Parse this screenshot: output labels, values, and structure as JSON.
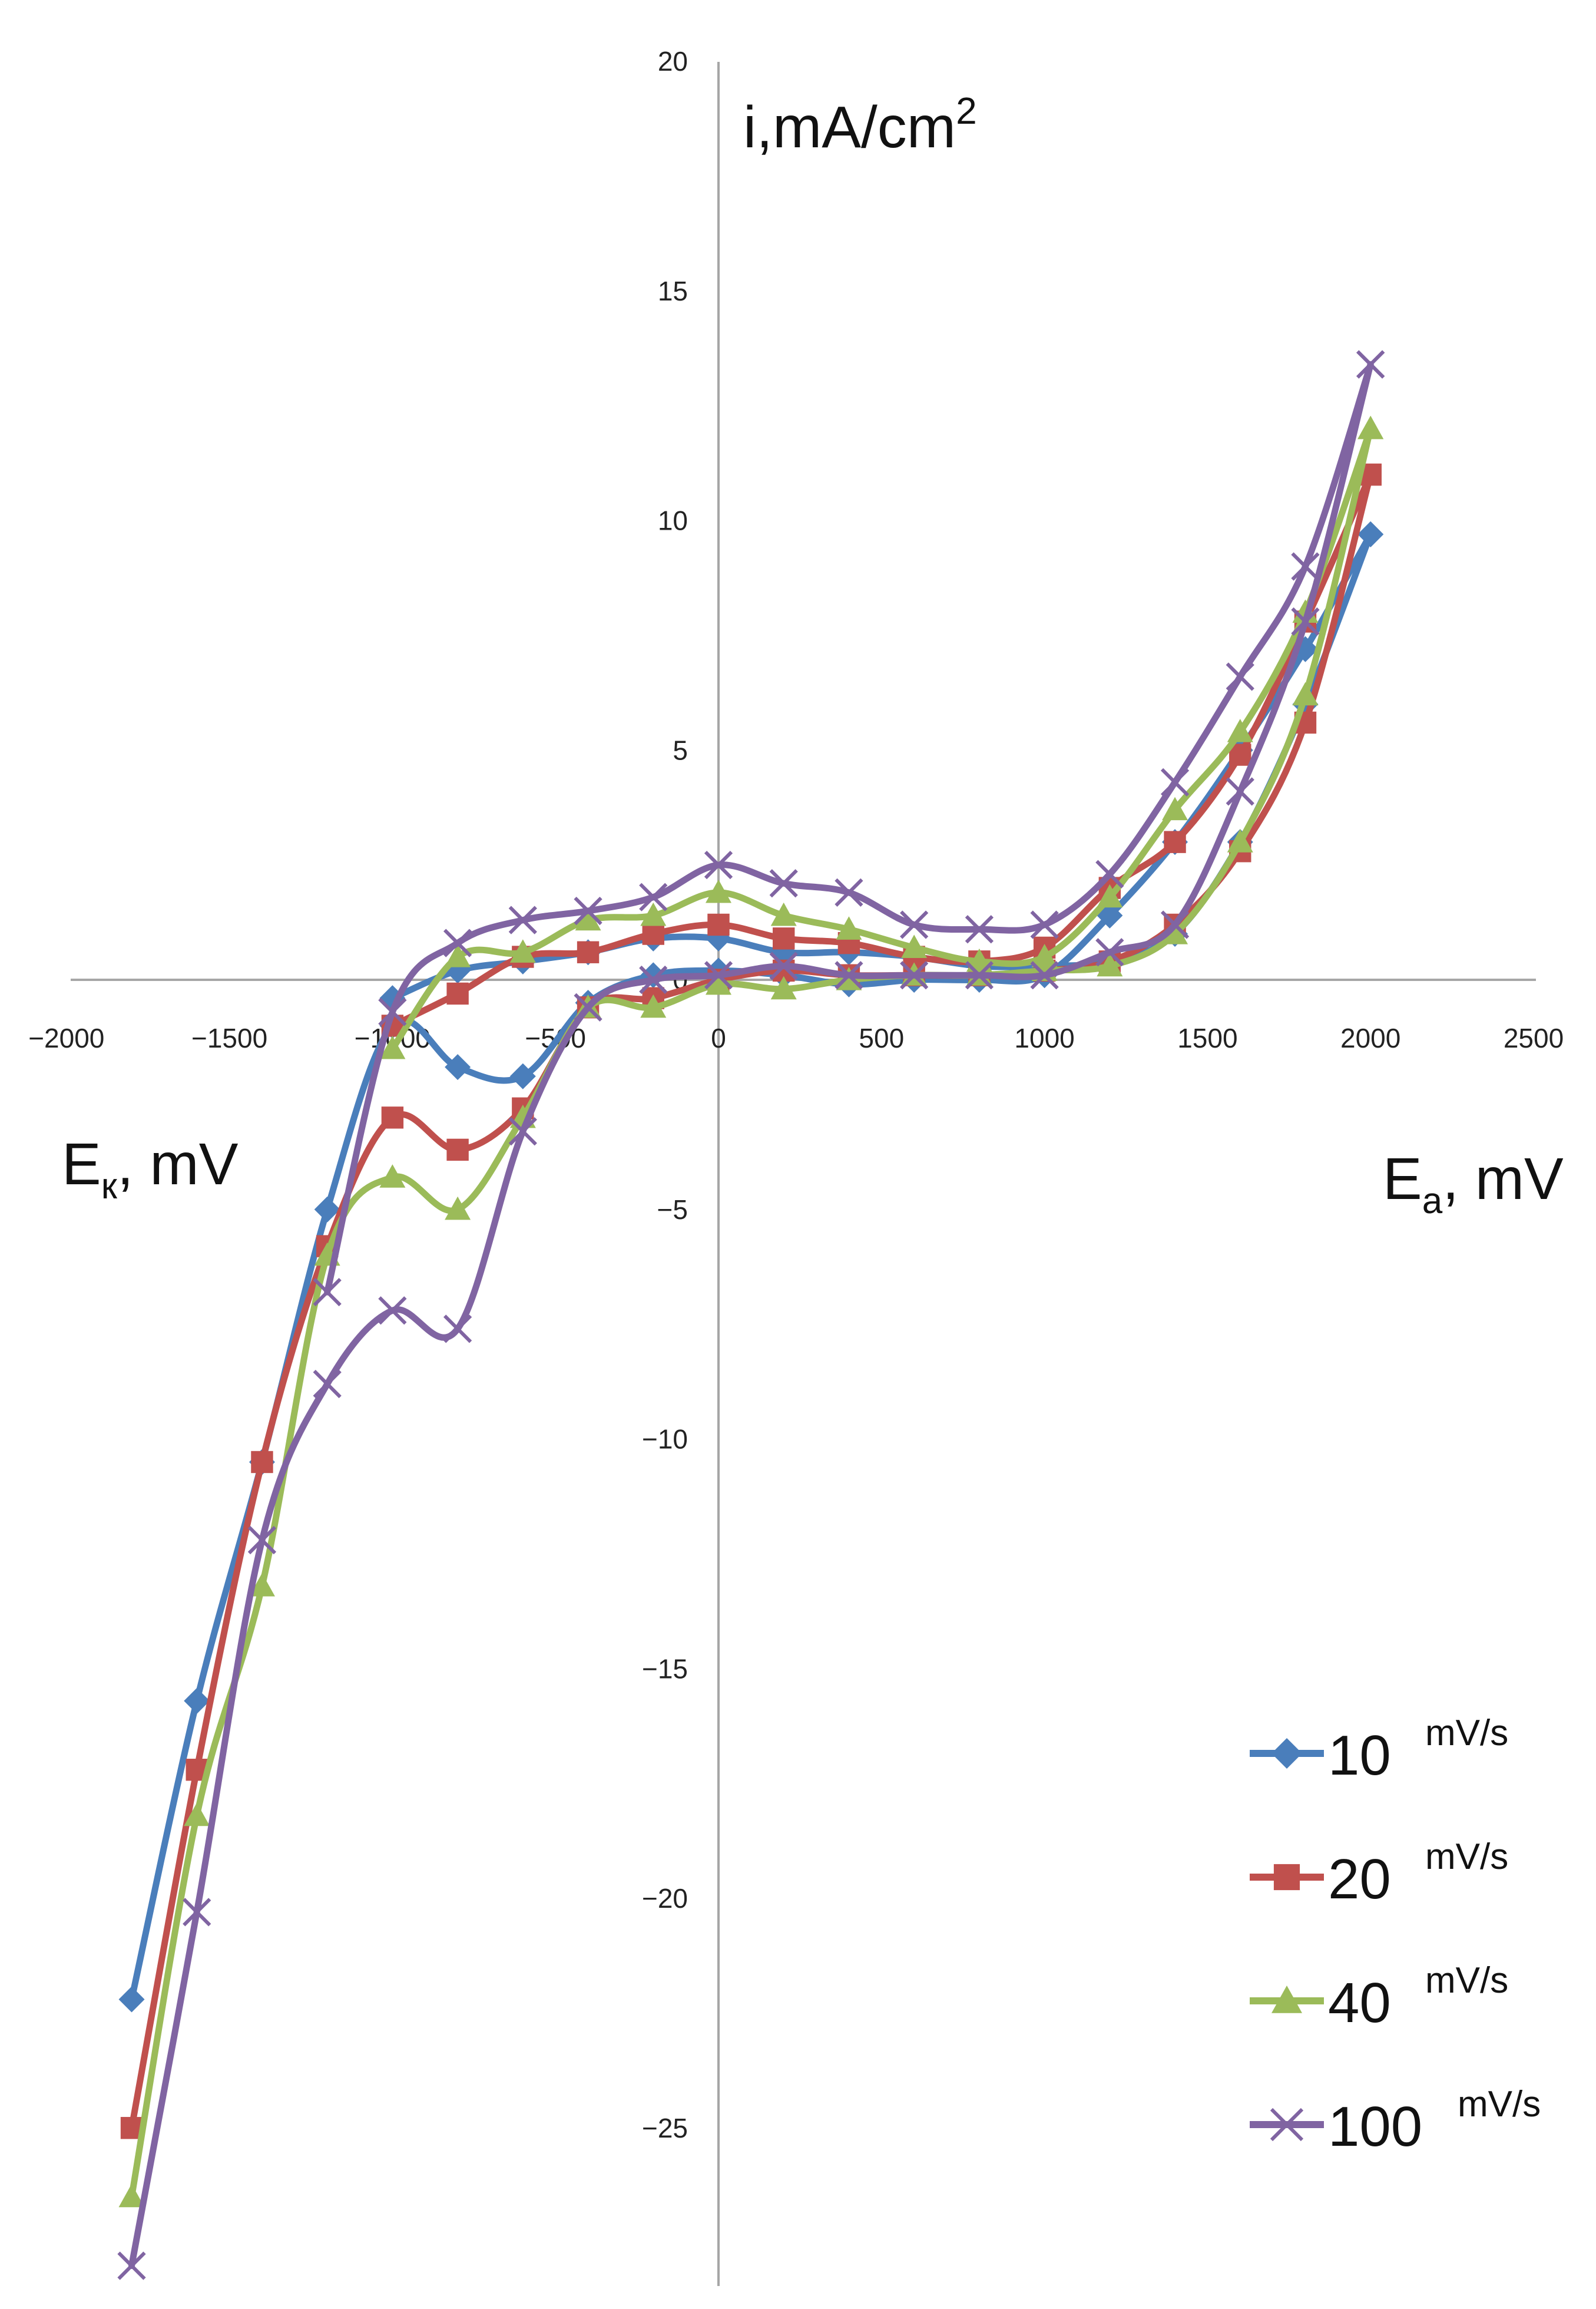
{
  "chart_data": {
    "type": "line",
    "title": "",
    "xlabel_left": "Eк, mV",
    "xlabel_left_main": "E",
    "xlabel_left_sub": "к",
    "xlabel_left_rest": ", mV",
    "xlabel_right": "Ea, mV",
    "xlabel_right_main": "E",
    "xlabel_right_sub": "a",
    "xlabel_right_rest": ", mV",
    "ylabel": "i,mA/cm2",
    "ylabel_main": "i,mA/cm",
    "ylabel_sup": "2",
    "xlim": [
      -2000,
      2500
    ],
    "ylim": [
      -28,
      20
    ],
    "x_ticks": [
      "-2000",
      "-1500",
      "-1000",
      "-500",
      "0",
      "500",
      "1000",
      "1500",
      "2000",
      "2500"
    ],
    "y_ticks": [
      "20",
      "15",
      "10",
      "5",
      "0",
      "-5",
      "-10",
      "-15",
      "-20",
      "-25"
    ],
    "legend_position": "bottom-right",
    "series": [
      {
        "name": "10 mV/s",
        "label_num": "10",
        "label_unit": "mV/s",
        "color": "#4a7ebb",
        "marker": "diamond",
        "forward": [
          [
            -1800,
            -22.2
          ],
          [
            -1600,
            -15.7
          ],
          [
            -1400,
            -10.5
          ],
          [
            -1200,
            -5.0
          ],
          [
            -1000,
            -1.0
          ],
          [
            -800,
            -1.9
          ],
          [
            -600,
            -2.1
          ],
          [
            -400,
            -0.5
          ],
          [
            -200,
            0.1
          ],
          [
            0,
            0.2
          ],
          [
            200,
            0.1
          ],
          [
            400,
            -0.1
          ],
          [
            600,
            0.0
          ],
          [
            800,
            0.0
          ],
          [
            1000,
            0.1
          ],
          [
            1200,
            1.4
          ],
          [
            1400,
            3.0
          ],
          [
            1600,
            5.0
          ],
          [
            1800,
            7.2
          ],
          [
            2000,
            9.7
          ]
        ],
        "backward": [
          [
            2000,
            9.7
          ],
          [
            1800,
            6.0
          ],
          [
            1600,
            3.0
          ],
          [
            1400,
            1.0
          ],
          [
            1200,
            0.4
          ],
          [
            1000,
            0.3
          ],
          [
            800,
            0.3
          ],
          [
            600,
            0.5
          ],
          [
            400,
            0.6
          ],
          [
            200,
            0.6
          ],
          [
            0,
            0.9
          ],
          [
            -200,
            0.9
          ],
          [
            -400,
            0.6
          ],
          [
            -600,
            0.4
          ],
          [
            -800,
            0.2
          ],
          [
            -1000,
            -0.4
          ]
        ]
      },
      {
        "name": "20 mV/s",
        "label_num": "20",
        "label_unit": "mV/s",
        "color": "#c0504d",
        "marker": "square",
        "forward": [
          [
            -1800,
            -25.0
          ],
          [
            -1600,
            -17.2
          ],
          [
            -1400,
            -10.5
          ],
          [
            -1200,
            -5.8
          ],
          [
            -1000,
            -3.0
          ],
          [
            -800,
            -3.7
          ],
          [
            -600,
            -2.8
          ],
          [
            -400,
            -0.6
          ],
          [
            -200,
            -0.4
          ],
          [
            0,
            0.0
          ],
          [
            200,
            0.2
          ],
          [
            400,
            0.1
          ],
          [
            600,
            0.1
          ],
          [
            800,
            0.1
          ],
          [
            1000,
            0.2
          ],
          [
            1200,
            0.4
          ],
          [
            1400,
            1.2
          ],
          [
            1600,
            2.8
          ],
          [
            1800,
            5.6
          ],
          [
            2000,
            11.0
          ]
        ],
        "backward": [
          [
            2000,
            11.0
          ],
          [
            1800,
            7.8
          ],
          [
            1600,
            4.9
          ],
          [
            1400,
            3.0
          ],
          [
            1200,
            2.0
          ],
          [
            1000,
            0.7
          ],
          [
            800,
            0.4
          ],
          [
            600,
            0.5
          ],
          [
            400,
            0.8
          ],
          [
            200,
            0.9
          ],
          [
            0,
            1.2
          ],
          [
            -200,
            1.0
          ],
          [
            -400,
            0.6
          ],
          [
            -600,
            0.5
          ],
          [
            -800,
            -0.3
          ],
          [
            -1000,
            -1.0
          ]
        ]
      },
      {
        "name": "40 mV/s",
        "label_num": "40",
        "label_unit": "mV/s",
        "color": "#9bbb59",
        "marker": "triangle",
        "forward": [
          [
            -1800,
            -26.5
          ],
          [
            -1600,
            -18.2
          ],
          [
            -1400,
            -13.2
          ],
          [
            -1200,
            -6.0
          ],
          [
            -1000,
            -4.3
          ],
          [
            -800,
            -5.0
          ],
          [
            -600,
            -3.0
          ],
          [
            -400,
            -0.6
          ],
          [
            -200,
            -0.6
          ],
          [
            0,
            -0.1
          ],
          [
            200,
            -0.2
          ],
          [
            400,
            0.0
          ],
          [
            600,
            0.1
          ],
          [
            800,
            0.1
          ],
          [
            1000,
            0.2
          ],
          [
            1200,
            0.3
          ],
          [
            1400,
            1.0
          ],
          [
            1600,
            3.0
          ],
          [
            1800,
            6.2
          ],
          [
            2000,
            12.0
          ]
        ],
        "backward": [
          [
            2000,
            12.0
          ],
          [
            1800,
            8.0
          ],
          [
            1600,
            5.4
          ],
          [
            1400,
            3.7
          ],
          [
            1200,
            1.8
          ],
          [
            1000,
            0.5
          ],
          [
            800,
            0.4
          ],
          [
            600,
            0.7
          ],
          [
            400,
            1.1
          ],
          [
            200,
            1.4
          ],
          [
            0,
            1.9
          ],
          [
            -200,
            1.4
          ],
          [
            -400,
            1.3
          ],
          [
            -600,
            0.6
          ],
          [
            -800,
            0.5
          ],
          [
            -1000,
            -1.5
          ]
        ]
      },
      {
        "name": "100 mV/s",
        "label_num": "100",
        "label_unit": "mV/s",
        "color": "#8064a2",
        "marker": "x",
        "forward": [
          [
            -1800,
            -28.0
          ],
          [
            -1600,
            -20.3
          ],
          [
            -1400,
            -12.2
          ],
          [
            -1200,
            -8.8
          ],
          [
            -1000,
            -7.2
          ],
          [
            -800,
            -7.6
          ],
          [
            -600,
            -3.3
          ],
          [
            -400,
            -0.6
          ],
          [
            -200,
            0.0
          ],
          [
            0,
            0.1
          ],
          [
            200,
            0.3
          ],
          [
            400,
            0.1
          ],
          [
            600,
            0.1
          ],
          [
            800,
            0.1
          ],
          [
            1000,
            0.1
          ],
          [
            1200,
            0.6
          ],
          [
            1400,
            1.2
          ],
          [
            1600,
            4.1
          ],
          [
            1800,
            7.8
          ],
          [
            2000,
            13.4
          ]
        ],
        "backward": [
          [
            2000,
            13.4
          ],
          [
            1800,
            9.0
          ],
          [
            1600,
            6.6
          ],
          [
            1400,
            4.3
          ],
          [
            1200,
            2.3
          ],
          [
            1000,
            1.2
          ],
          [
            800,
            1.1
          ],
          [
            600,
            1.2
          ],
          [
            400,
            1.9
          ],
          [
            200,
            2.1
          ],
          [
            0,
            2.5
          ],
          [
            -200,
            1.8
          ],
          [
            -400,
            1.5
          ],
          [
            -600,
            1.3
          ],
          [
            -800,
            0.8
          ],
          [
            -1000,
            -0.7
          ],
          [
            -1200,
            -6.8
          ]
        ]
      }
    ]
  }
}
